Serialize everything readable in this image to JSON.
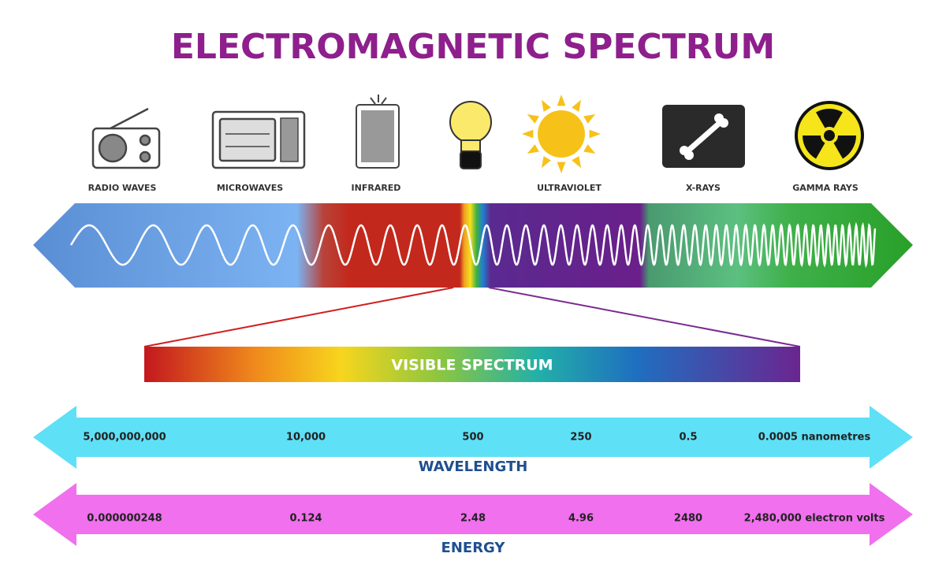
{
  "title": "ELECTROMAGNETIC SPECTRUM",
  "bands": [
    "RADIO WAVES",
    "MICROWAVES",
    "INFRARED",
    "ULTRAVIOLET",
    "X-RAYS",
    "GAMMA RAYS"
  ],
  "visible_spectrum": "VISIBLE SPECTRUM",
  "wavelength": {
    "label": "WAVELENGTH",
    "values": [
      "5,000,000,000",
      "10,000",
      "500",
      "250",
      "0.5",
      "0.0005 nanometres"
    ]
  },
  "energy": {
    "label": "ENERGY",
    "values": [
      "0.000000248",
      "0.124",
      "2.48",
      "4.96",
      "2480",
      "2,480,000 electron volts"
    ]
  }
}
